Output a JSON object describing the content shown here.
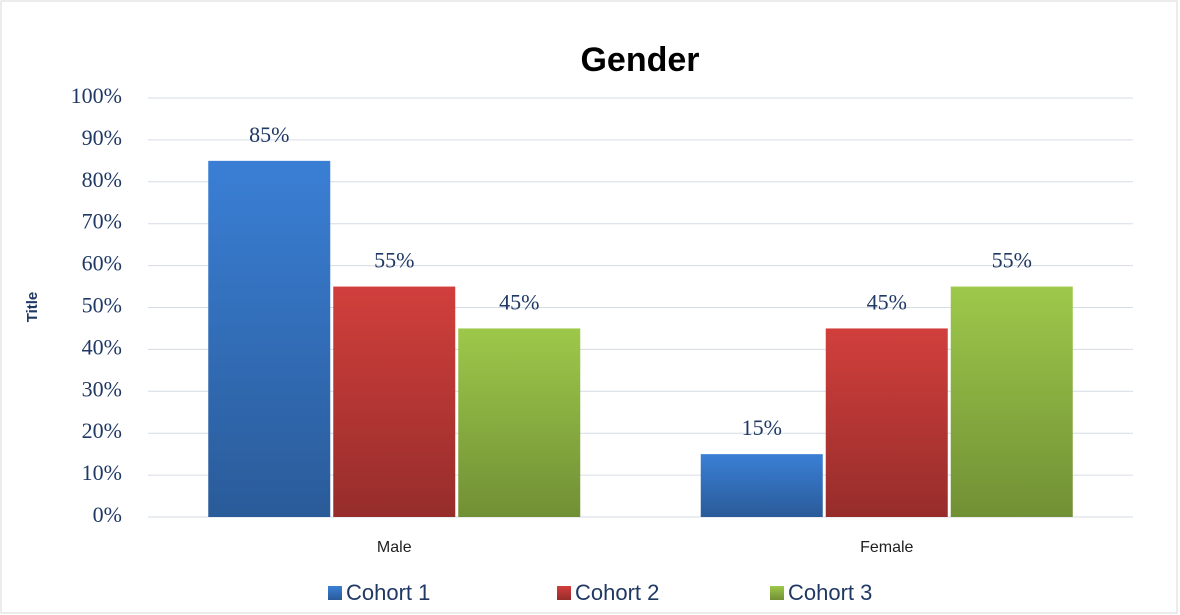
{
  "chart_data": {
    "type": "bar",
    "title": "Gender",
    "y_axis_label": "Title",
    "categories": [
      "Male",
      "Female"
    ],
    "series": [
      {
        "name": "Cohort 1",
        "color": "#3a7fd5",
        "values": [
          85,
          15
        ],
        "value_labels": [
          "85%",
          "15%"
        ]
      },
      {
        "name": "Cohort 2",
        "color": "#d13f3c",
        "values": [
          55,
          45
        ],
        "value_labels": [
          "55%",
          "45%"
        ]
      },
      {
        "name": "Cohort 3",
        "color": "#9dc84a",
        "values": [
          45,
          55
        ],
        "value_labels": [
          "45%",
          "55%"
        ]
      }
    ],
    "ylim": [
      0,
      100
    ],
    "yticks": [
      {
        "value": 0,
        "label": "0%"
      },
      {
        "value": 10,
        "label": "10%"
      },
      {
        "value": 20,
        "label": "20%"
      },
      {
        "value": 30,
        "label": "30%"
      },
      {
        "value": 40,
        "label": "40%"
      },
      {
        "value": 50,
        "label": "50%"
      },
      {
        "value": 60,
        "label": "60%"
      },
      {
        "value": 70,
        "label": "70%"
      },
      {
        "value": 80,
        "label": "80%"
      },
      {
        "value": 90,
        "label": "90%"
      },
      {
        "value": 100,
        "label": "100%"
      }
    ],
    "grid": true,
    "legend": "bottom"
  }
}
